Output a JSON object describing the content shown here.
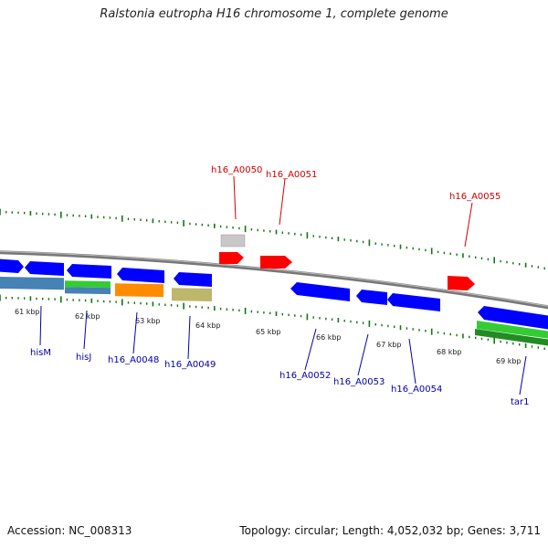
{
  "title": "Ralstonia eutropha H16 chromosome 1, complete genome",
  "footer": {
    "accession": "Accession: NC_008313",
    "topology": "Topology: circular; Length: 4,052,032 bp; Genes: 3,711"
  },
  "colors": {
    "backbone": "#888888",
    "ticks": "#117711",
    "forward_label": "#cc0000",
    "reverse_label": "#0000aa",
    "cds_forward": "#ff0000",
    "cds_reverse": "#0000ff",
    "pseudo": "#c8c8c8",
    "rna_green": "#33cc33",
    "rna_steelblue": "#4682b4",
    "rna_orange": "#ff8c00",
    "rna_khaki": "#bdb76b"
  },
  "kbp_labels": [
    "61 kbp",
    "62 kbp",
    "63 kbp",
    "64 kbp",
    "65 kbp",
    "66 kbp",
    "67 kbp",
    "68 kbp",
    "69 kbp"
  ],
  "forward_gene_labels": [
    "h16_A0050",
    "h16_A0051",
    "h16_A0055"
  ],
  "reverse_gene_labels": [
    "hisM",
    "hisJ",
    "h16_A0048",
    "h16_A0049",
    "h16_A0052",
    "h16_A0053",
    "h16_A0054",
    "tar1"
  ]
}
